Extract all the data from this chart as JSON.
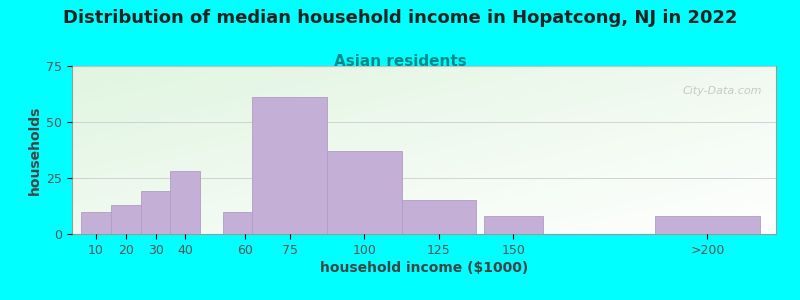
{
  "title": "Distribution of median household income in Hopatcong, NJ in 2022",
  "subtitle": "Asian residents",
  "xlabel": "household income ($1000)",
  "ylabel": "households",
  "background_color": "#00FFFF",
  "bar_color": "#c4afd6",
  "bar_edge_color": "#b09dc4",
  "categories": [
    "10",
    "20",
    "30",
    "40",
    "60",
    "75",
    "100",
    "125",
    "150",
    ">200"
  ],
  "values": [
    10,
    13,
    19,
    28,
    10,
    61,
    37,
    15,
    8,
    8
  ],
  "ylim": [
    0,
    75
  ],
  "yticks": [
    0,
    25,
    50,
    75
  ],
  "title_fontsize": 13,
  "subtitle_fontsize": 11,
  "axis_label_fontsize": 10,
  "tick_fontsize": 9,
  "watermark_text": "City-Data.com",
  "x_positions": [
    10,
    20,
    30,
    40,
    60,
    75,
    100,
    125,
    150,
    215
  ],
  "x_widths": [
    10,
    10,
    10,
    10,
    15,
    25,
    25,
    25,
    20,
    35
  ]
}
